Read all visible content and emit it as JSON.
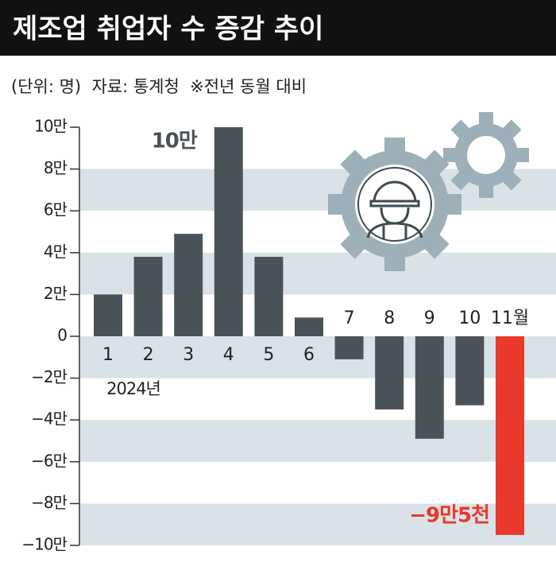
{
  "chart_data": {
    "type": "bar",
    "title": "제조업 취업자 수 증감 추이",
    "subtitle": "(단위: 명)  자료: 통계청  ※전년 동월 대비",
    "year_label": "2024년",
    "categories": [
      "1",
      "2",
      "3",
      "4",
      "5",
      "6",
      "7",
      "8",
      "9",
      "10",
      "11월"
    ],
    "values": [
      2.0,
      3.8,
      4.9,
      10,
      3.8,
      0.9,
      -1.1,
      -3.5,
      -4.9,
      -3.3,
      -9.5
    ],
    "value_labels": [
      null,
      null,
      null,
      "10만",
      null,
      null,
      null,
      null,
      null,
      null,
      "−9만5천"
    ],
    "colors": [
      "#4a5358",
      "#4a5358",
      "#4a5358",
      "#4a5358",
      "#4a5358",
      "#4a5358",
      "#4a5358",
      "#4a5358",
      "#4a5358",
      "#4a5358",
      "#e8392b"
    ],
    "ylim": [
      -10,
      10
    ],
    "yticks": [
      {
        "value": 10,
        "label": "10만"
      },
      {
        "value": 8,
        "label": "8만"
      },
      {
        "value": 6,
        "label": "6만"
      },
      {
        "value": 4,
        "label": "4만"
      },
      {
        "value": 2,
        "label": "2만"
      },
      0,
      {
        "value": -2,
        "label": "−2만"
      },
      {
        "value": -4,
        "label": "−4만"
      },
      {
        "value": -6,
        "label": "−6만"
      },
      {
        "value": -8,
        "label": "−8만"
      },
      {
        "value": -10,
        "label": "−10만"
      }
    ],
    "grid": true
  }
}
